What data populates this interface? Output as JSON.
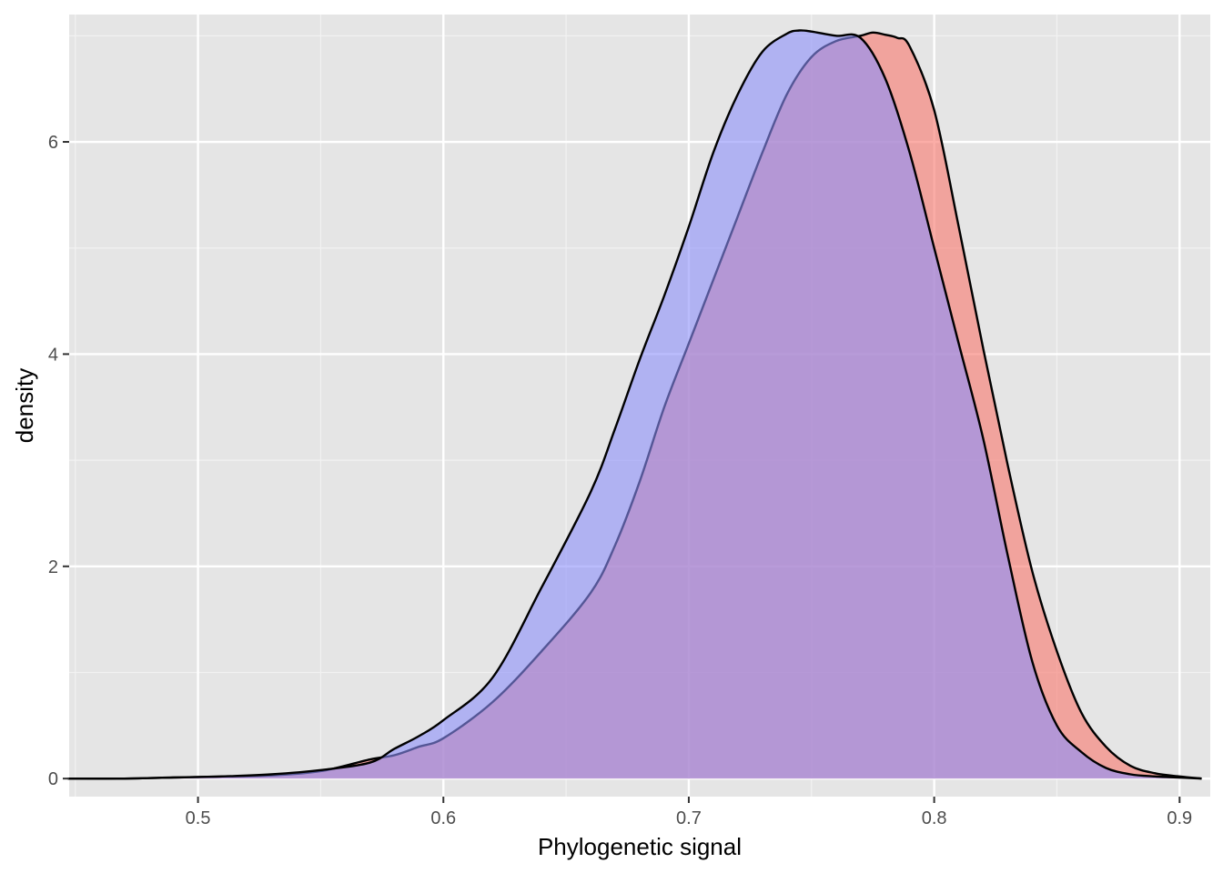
{
  "chart_data": {
    "type": "area",
    "title": "",
    "xlabel": "Phylogenetic signal",
    "ylabel": "density",
    "xlim": [
      0.4475,
      0.9125
    ],
    "ylim": [
      -0.17,
      7.2
    ],
    "x_ticks": [
      0.5,
      0.6,
      0.7,
      0.8,
      0.9
    ],
    "x_tick_labels": [
      "0.5",
      "0.6",
      "0.7",
      "0.8",
      "0.9"
    ],
    "y_ticks": [
      0,
      2,
      4,
      6
    ],
    "y_tick_labels": [
      "0",
      "2",
      "4",
      "6"
    ],
    "grid": true,
    "legend": "none",
    "series": [
      {
        "color": "#f8766d",
        "x": [
          0.447,
          0.47,
          0.49,
          0.51,
          0.53,
          0.55,
          0.57,
          0.58,
          0.59,
          0.6,
          0.62,
          0.64,
          0.66,
          0.67,
          0.68,
          0.69,
          0.7,
          0.71,
          0.72,
          0.73,
          0.74,
          0.75,
          0.76,
          0.77,
          0.775,
          0.78,
          0.785,
          0.79,
          0.8,
          0.81,
          0.82,
          0.83,
          0.84,
          0.85,
          0.86,
          0.87,
          0.88,
          0.89,
          0.9,
          0.909
        ],
        "y": [
          0.0,
          0.0,
          0.01,
          0.02,
          0.03,
          0.07,
          0.18,
          0.22,
          0.3,
          0.38,
          0.72,
          1.2,
          1.75,
          2.2,
          2.8,
          3.5,
          4.1,
          4.7,
          5.3,
          5.9,
          6.45,
          6.8,
          6.95,
          7.0,
          7.03,
          7.01,
          6.98,
          6.9,
          6.3,
          5.2,
          4.05,
          2.95,
          1.95,
          1.2,
          0.62,
          0.3,
          0.12,
          0.05,
          0.02,
          0.0
        ]
      },
      {
        "color": "#8c8ffa",
        "x": [
          0.447,
          0.47,
          0.49,
          0.51,
          0.53,
          0.55,
          0.57,
          0.58,
          0.59,
          0.6,
          0.62,
          0.64,
          0.66,
          0.67,
          0.68,
          0.69,
          0.7,
          0.71,
          0.72,
          0.73,
          0.74,
          0.745,
          0.75,
          0.76,
          0.77,
          0.78,
          0.79,
          0.8,
          0.81,
          0.82,
          0.83,
          0.84,
          0.85,
          0.86,
          0.87,
          0.88,
          0.89,
          0.9,
          0.909
        ],
        "y": [
          0.0,
          0.0,
          0.01,
          0.02,
          0.04,
          0.08,
          0.15,
          0.28,
          0.4,
          0.55,
          0.95,
          1.8,
          2.7,
          3.3,
          3.95,
          4.55,
          5.2,
          5.9,
          6.45,
          6.85,
          7.02,
          7.05,
          7.04,
          7.0,
          6.98,
          6.6,
          5.9,
          5.0,
          4.1,
          3.2,
          2.1,
          1.1,
          0.5,
          0.25,
          0.1,
          0.04,
          0.02,
          0.01,
          0.0
        ]
      }
    ]
  }
}
